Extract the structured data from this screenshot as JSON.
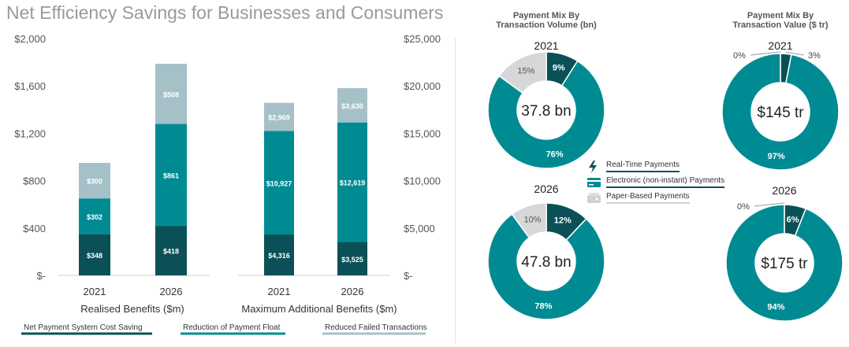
{
  "title": "Net Efficiency Savings for Businesses and Consumers",
  "colors": {
    "dark": "#0b5057",
    "mid": "#008b93",
    "light": "#a6c0c8",
    "paper": "#d6d7d8",
    "axis": "#555555",
    "donut_dark": "#0b5057",
    "donut_mid": "#008b93",
    "donut_light": "#d6d7d8"
  },
  "chart_data": [
    {
      "type": "bar",
      "stacked": true,
      "title": "Realised Benefits ($m)",
      "xlabel": "Realised Benefits ($m)",
      "ylabel": "",
      "ylim": [
        0,
        2000
      ],
      "yticks": [
        0,
        400,
        800,
        1200,
        1600,
        2000
      ],
      "ytick_labels": [
        "$-",
        "$400",
        "$800",
        "$1,200",
        "$1,600",
        "$2,000"
      ],
      "categories": [
        "2021",
        "2026"
      ],
      "series": [
        {
          "name": "Net Payment System Cost Saving",
          "values": [
            348,
            418
          ],
          "labels": [
            "$348",
            "$418"
          ]
        },
        {
          "name": "Reduction of Payment Float",
          "values": [
            302,
            861
          ],
          "labels": [
            "$302",
            "$861"
          ]
        },
        {
          "name": "Reduced Failed Transactions",
          "values": [
            300,
            508
          ],
          "labels": [
            "$300",
            "$508"
          ]
        }
      ]
    },
    {
      "type": "bar",
      "stacked": true,
      "title": "Maximum Additional Benefits ($m)",
      "xlabel": "Maximum Additional Benefits ($m)",
      "ylabel": "",
      "ylim": [
        0,
        25000
      ],
      "yticks": [
        0,
        5000,
        10000,
        15000,
        20000,
        25000
      ],
      "ytick_labels": [
        "$-",
        "$5,000",
        "$10,000",
        "$15,000",
        "$20,000",
        "$25,000"
      ],
      "categories": [
        "2021",
        "2026"
      ],
      "series": [
        {
          "name": "Net Payment System Cost Saving",
          "values": [
            4316,
            3525
          ],
          "labels": [
            "$4,316",
            "$3,525"
          ]
        },
        {
          "name": "Reduction of Payment Float",
          "values": [
            10927,
            12619
          ],
          "labels": [
            "$10,927",
            "$12,619"
          ]
        },
        {
          "name": "Reduced Failed Transactions",
          "values": [
            2969,
            3630
          ],
          "labels": [
            "$2,969",
            "$3,630"
          ]
        }
      ]
    },
    {
      "type": "pie",
      "donut": true,
      "group_title": "Payment Mix By Transaction Volume (bn)",
      "year": "2021",
      "center": "37.8 bn",
      "slices": [
        {
          "name": "Real-Time Payments",
          "value": 9,
          "label": "9%"
        },
        {
          "name": "Electronic (non-instant) Payments",
          "value": 76,
          "label": "76%"
        },
        {
          "name": "Paper-Based Payments",
          "value": 15,
          "label": "15%"
        }
      ]
    },
    {
      "type": "pie",
      "donut": true,
      "group_title": "Payment Mix By Transaction Volume (bn)",
      "year": "2026",
      "center": "47.8 bn",
      "slices": [
        {
          "name": "Real-Time Payments",
          "value": 12,
          "label": "12%"
        },
        {
          "name": "Electronic (non-instant) Payments",
          "value": 78,
          "label": "78%"
        },
        {
          "name": "Paper-Based Payments",
          "value": 10,
          "label": "10%"
        }
      ]
    },
    {
      "type": "pie",
      "donut": true,
      "group_title": "Payment Mix By Transaction Value ($ tr)",
      "year": "2021",
      "center": "$145 tr",
      "slices": [
        {
          "name": "Real-Time Payments",
          "value": 3,
          "label": "3%"
        },
        {
          "name": "Electronic (non-instant) Payments",
          "value": 97,
          "label": "97%"
        },
        {
          "name": "Paper-Based Payments",
          "value": 0,
          "label": "0%"
        }
      ]
    },
    {
      "type": "pie",
      "donut": true,
      "group_title": "Payment Mix By Transaction Value ($ tr)",
      "year": "2026",
      "center": "$175 tr",
      "slices": [
        {
          "name": "Real-Time Payments",
          "value": 6,
          "label": "6%"
        },
        {
          "name": "Electronic (non-instant) Payments",
          "value": 94,
          "label": "94%"
        },
        {
          "name": "Paper-Based Payments",
          "value": 0,
          "label": "0%"
        }
      ]
    }
  ],
  "bar_legend": [
    "Net Payment System Cost Saving",
    "Reduction of Payment Float",
    "Reduced Failed Transactions"
  ],
  "donut_titles": {
    "volume": [
      "Payment Mix By",
      "Transaction Volume (bn)"
    ],
    "value": [
      "Payment Mix By",
      "Transaction Value ($ tr)"
    ]
  },
  "pie_legend": [
    {
      "label": "Real-Time Payments",
      "icon": "lightning-icon"
    },
    {
      "label": "Electronic (non-instant) Payments",
      "icon": "card-icon"
    },
    {
      "label": "Paper-Based Payments",
      "icon": "wallet-icon"
    }
  ]
}
